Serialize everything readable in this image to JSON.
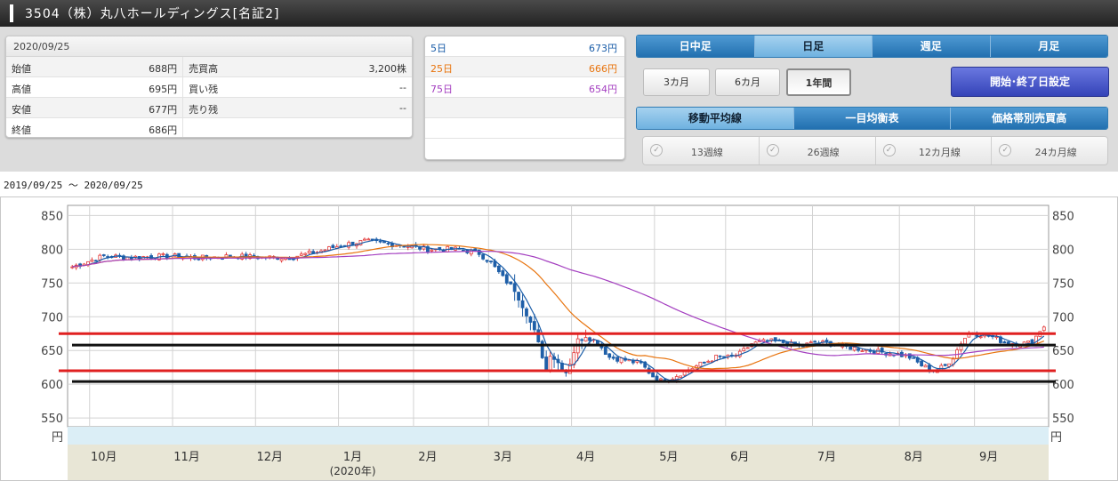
{
  "header": {
    "title": "3504（株）丸八ホールディングス[名証2]"
  },
  "quote": {
    "date": "2020/09/25",
    "rows": [
      {
        "l1": "始値",
        "v1": "688円",
        "l2": "売買高",
        "v2": "3,200株"
      },
      {
        "l1": "高値",
        "v1": "695円",
        "l2": "買い残",
        "v2": "--"
      },
      {
        "l1": "安値",
        "v1": "677円",
        "l2": "売り残",
        "v2": "--"
      },
      {
        "l1": "終値",
        "v1": "686円",
        "l2": "",
        "v2": ""
      }
    ]
  },
  "moving_averages": [
    {
      "label": "5日",
      "value": "673円",
      "color": "#1a5da8"
    },
    {
      "label": "25日",
      "value": "666円",
      "color": "#e8740e"
    },
    {
      "label": "75日",
      "value": "654円",
      "color": "#a43fc0"
    },
    {
      "label": "",
      "value": "",
      "color": "#333333"
    },
    {
      "label": "",
      "value": "",
      "color": "#333333"
    }
  ],
  "period_tabs": [
    "日中足",
    "日足",
    "週足",
    "月足"
  ],
  "range_buttons": [
    "3カ月",
    "6カ月",
    "1年間"
  ],
  "date_button": "開始･終了日設定",
  "feature_tabs": [
    "移動平均線",
    "一目均衡表",
    "価格帯別売買高"
  ],
  "ma_options": [
    "13週線",
    "26週線",
    "12カ月線",
    "24カ月線"
  ],
  "check_glyph": "✓",
  "range_text": "2019/09/25 〜 2020/09/25",
  "chart_data": {
    "type": "candlestick",
    "y_ticks": [
      550,
      600,
      650,
      700,
      750,
      800,
      850
    ],
    "ylim": [
      537,
      865
    ],
    "unit": "円",
    "x_tick_labels": [
      {
        "label": "10月",
        "day": 8
      },
      {
        "label": "11月",
        "day": 29
      },
      {
        "label": "12月",
        "day": 50
      },
      {
        "label": "1月",
        "day": 71
      },
      {
        "label": "2月",
        "day": 90
      },
      {
        "label": "3月",
        "day": 109
      },
      {
        "label": "4月",
        "day": 130
      },
      {
        "label": "5月",
        "day": 151
      },
      {
        "label": "6月",
        "day": 169
      },
      {
        "label": "7月",
        "day": 191
      },
      {
        "label": "8月",
        "day": 213
      },
      {
        "label": "9月",
        "day": 232
      }
    ],
    "year_label": "(2020年)",
    "n_days": 247,
    "key_points": [
      [
        0,
        774
      ],
      [
        8,
        790
      ],
      [
        15,
        788
      ],
      [
        25,
        790
      ],
      [
        32,
        787
      ],
      [
        40,
        790
      ],
      [
        48,
        788
      ],
      [
        55,
        788
      ],
      [
        62,
        796
      ],
      [
        68,
        806
      ],
      [
        74,
        812
      ],
      [
        80,
        808
      ],
      [
        85,
        805
      ],
      [
        90,
        800
      ],
      [
        98,
        800
      ],
      [
        103,
        794
      ],
      [
        106,
        780
      ],
      [
        109,
        758
      ],
      [
        112,
        740
      ],
      [
        115,
        705
      ],
      [
        117,
        678
      ],
      [
        119,
        642
      ],
      [
        120,
        620
      ],
      [
        121,
        645
      ],
      [
        123,
        632
      ],
      [
        125,
        618
      ],
      [
        126,
        632
      ],
      [
        128,
        665
      ],
      [
        130,
        672
      ],
      [
        133,
        662
      ],
      [
        136,
        640
      ],
      [
        140,
        636
      ],
      [
        144,
        630
      ],
      [
        147,
        612
      ],
      [
        149,
        605
      ],
      [
        152,
        610
      ],
      [
        156,
        622
      ],
      [
        160,
        632
      ],
      [
        163,
        640
      ],
      [
        166,
        640
      ],
      [
        169,
        645
      ],
      [
        172,
        660
      ],
      [
        176,
        664
      ],
      [
        180,
        662
      ],
      [
        184,
        656
      ],
      [
        188,
        662
      ],
      [
        192,
        660
      ],
      [
        196,
        655
      ],
      [
        200,
        652
      ],
      [
        204,
        648
      ],
      [
        208,
        646
      ],
      [
        212,
        640
      ],
      [
        215,
        628
      ],
      [
        218,
        620
      ],
      [
        221,
        627
      ],
      [
        223,
        640
      ],
      [
        225,
        662
      ],
      [
        227,
        676
      ],
      [
        230,
        674
      ],
      [
        233,
        670
      ],
      [
        236,
        662
      ],
      [
        240,
        660
      ],
      [
        243,
        662
      ],
      [
        245,
        680
      ],
      [
        246,
        686
      ]
    ],
    "ma_lines": [
      {
        "name": "5日",
        "color": "#1a5da8"
      },
      {
        "name": "25日",
        "color": "#e8740e"
      },
      {
        "name": "75日",
        "color": "#a43fc0"
      }
    ],
    "reference_lines": [
      {
        "value": 675,
        "color": "#e02020"
      },
      {
        "value": 658,
        "color": "#111111"
      },
      {
        "value": 620,
        "color": "#e02020"
      },
      {
        "value": 604,
        "color": "#111111"
      }
    ],
    "up_color": "#e33a3a",
    "down_color": "#1f5fa8",
    "grid": true
  }
}
